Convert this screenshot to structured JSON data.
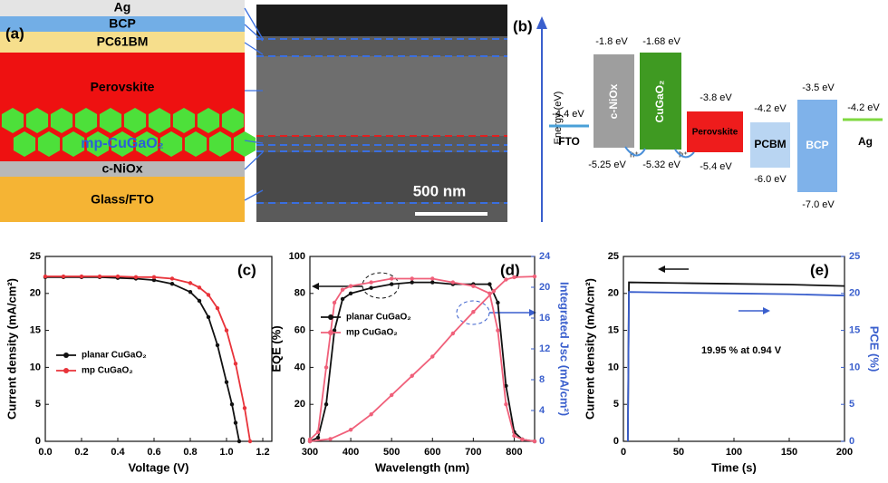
{
  "device_stack": {
    "label": "(a)",
    "layers": [
      "Ag",
      "BCP",
      "PC61BM",
      "Perovskite",
      "mp-CuGaO₂",
      "c-NiOx",
      "Glass/FTO"
    ],
    "scale_bar": "500 nm"
  },
  "energy_diagram": {
    "label": "(b)",
    "axis_label": "Energy (eV)",
    "fto": {
      "name": "FTO",
      "level": "-4.4 eV"
    },
    "ag": {
      "name": "Ag",
      "level": "-4.2 eV"
    },
    "boxes": [
      {
        "name": "c-NiOx",
        "top": "-1.8 eV",
        "bottom": "-5.25 eV"
      },
      {
        "name": "CuGaO₂",
        "top": "-1.68 eV",
        "bottom": "-5.32 eV"
      },
      {
        "name": "Perovskite",
        "top": "-3.8 eV",
        "bottom": "-5.4 eV"
      },
      {
        "name": "PCBM",
        "top": "-4.2 eV",
        "bottom": "-6.0 eV"
      },
      {
        "name": "BCP",
        "top": "-3.5 eV",
        "bottom": "-7.0 eV"
      }
    ],
    "hole_labels": [
      "h⁺",
      "h⁺"
    ]
  },
  "chart_data": [
    {
      "type": "line",
      "panel_label": "(c)",
      "x_label": "Voltage (V)",
      "y_label": "Current density (mA/cm²)",
      "xlim": [
        0,
        1.25
      ],
      "xticks": [
        {
          "value": 0,
          "label": "0.0"
        },
        {
          "value": 0.2,
          "label": "0.2"
        },
        {
          "value": 0.4,
          "label": "0.4"
        },
        {
          "value": 0.6,
          "label": "0.6"
        },
        {
          "value": 0.8,
          "label": "0.8"
        },
        {
          "value": 1,
          "label": "1.0"
        },
        {
          "value": 1.2,
          "label": "1.2"
        }
      ],
      "ylim": [
        0,
        25
      ],
      "yticks": [
        0,
        5,
        10,
        15,
        20,
        25
      ],
      "legend": "lower left",
      "markers": true,
      "series": [
        {
          "name": "planar CuGaO₂",
          "color": "#111111",
          "x": [
            0,
            0.1,
            0.2,
            0.3,
            0.4,
            0.5,
            0.6,
            0.7,
            0.8,
            0.85,
            0.9,
            0.95,
            1.0,
            1.03,
            1.05,
            1.07
          ],
          "values": [
            22.2,
            22.2,
            22.2,
            22.2,
            22.1,
            22.0,
            21.8,
            21.3,
            20.2,
            19.0,
            16.8,
            13.0,
            8.0,
            5.0,
            2.5,
            0
          ]
        },
        {
          "name": "mp CuGaO₂",
          "color": "#e8333a",
          "x": [
            0,
            0.1,
            0.2,
            0.3,
            0.4,
            0.5,
            0.6,
            0.7,
            0.8,
            0.85,
            0.9,
            0.95,
            1.0,
            1.05,
            1.1,
            1.13
          ],
          "values": [
            22.3,
            22.3,
            22.3,
            22.3,
            22.3,
            22.2,
            22.2,
            22.0,
            21.4,
            20.8,
            19.8,
            18.0,
            15.0,
            10.5,
            4.5,
            0
          ]
        }
      ]
    },
    {
      "type": "line",
      "panel_label": "(d)",
      "x_label": "Wavelength (nm)",
      "y_label": "EQE (%)",
      "y2_label": "Integrated Jsc (mA/cm²)",
      "y2_color": "#3a5fcd",
      "xlim": [
        300,
        850
      ],
      "xticks": [
        300,
        400,
        500,
        600,
        700,
        800
      ],
      "ylim": [
        0,
        100
      ],
      "yticks": [
        0,
        20,
        40,
        60,
        80,
        100
      ],
      "y2lim": [
        0,
        24
      ],
      "y2ticks": [
        0,
        4,
        8,
        12,
        16,
        20,
        24
      ],
      "legend": "center left",
      "markers": true,
      "series": [
        {
          "name": "planar CuGaO₂",
          "color": "#111111",
          "x": [
            300,
            320,
            340,
            360,
            380,
            400,
            450,
            500,
            550,
            600,
            650,
            700,
            740,
            760,
            780,
            800,
            820,
            850
          ],
          "values": [
            0,
            2,
            20,
            60,
            77,
            80,
            83,
            85,
            86,
            86,
            85,
            85,
            85,
            75,
            30,
            5,
            1,
            0
          ]
        },
        {
          "name": "mp CuGaO₂",
          "color": "#f0607a",
          "x": [
            300,
            320,
            340,
            360,
            380,
            400,
            450,
            500,
            550,
            600,
            650,
            700,
            740,
            760,
            780,
            800,
            820,
            850
          ],
          "values": [
            1,
            5,
            40,
            75,
            82,
            84,
            86,
            88,
            88,
            88,
            86,
            84,
            80,
            60,
            20,
            3,
            1,
            0
          ]
        },
        {
          "color": "#f0607a",
          "axis": "y2",
          "x": [
            300,
            350,
            400,
            450,
            500,
            550,
            600,
            650,
            700,
            750,
            780,
            800,
            850
          ],
          "values": [
            0,
            0.3,
            1.5,
            3.5,
            6,
            8.5,
            11,
            14,
            16.8,
            19.5,
            21,
            21.3,
            21.4
          ]
        }
      ]
    },
    {
      "type": "line",
      "panel_label": "(e)",
      "x_label": "Time (s)",
      "y_label": "Current density (mA/cm²)",
      "y2_label": "PCE (%)",
      "y2_color": "#3a5fcd",
      "annotation": "19.95 % at 0.94 V",
      "xlim": [
        0,
        200
      ],
      "xticks": [
        0,
        50,
        100,
        150,
        200
      ],
      "ylim": [
        0,
        25
      ],
      "yticks": [
        0,
        5,
        10,
        15,
        20,
        25
      ],
      "y2lim": [
        0,
        25
      ],
      "y2ticks": [
        0,
        5,
        10,
        15,
        20,
        25
      ],
      "markers": false,
      "series": [
        {
          "color": "#111111",
          "x": [
            4,
            5,
            50,
            100,
            150,
            200
          ],
          "values": [
            0,
            21.5,
            21.4,
            21.3,
            21.2,
            21.0
          ]
        },
        {
          "color": "#3a5fcd",
          "axis": "y2",
          "x": [
            4,
            5,
            50,
            100,
            150,
            200
          ],
          "values": [
            0,
            20.2,
            20.1,
            20.0,
            19.9,
            19.7
          ]
        }
      ]
    }
  ]
}
